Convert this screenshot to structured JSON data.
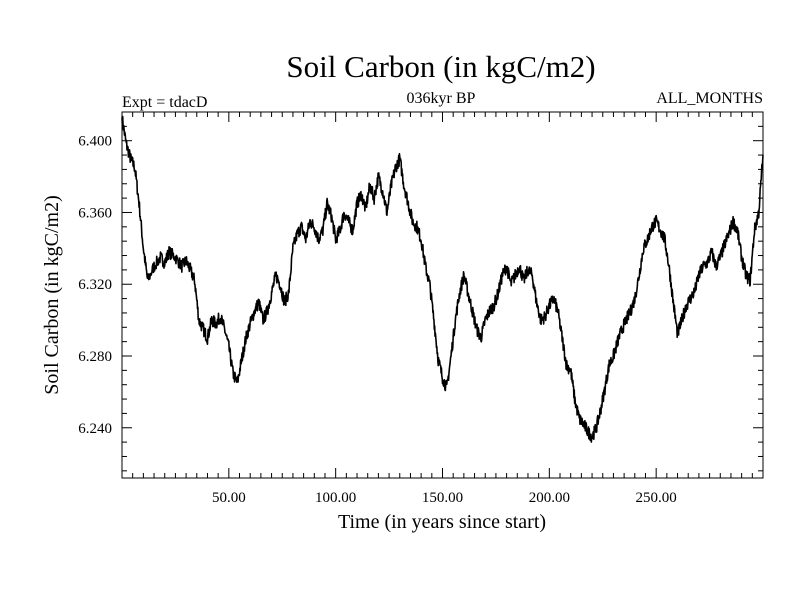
{
  "chart_data": {
    "type": "line",
    "title": "Soil Carbon (in kgC/m2)",
    "subtitle": "036kyr BP",
    "left_label": "Expt = tdacD",
    "right_label": "ALL_MONTHS",
    "xlabel": "Time (in years since start)",
    "ylabel": "Soil Carbon (in kgC/m2)",
    "xlim": [
      0,
      300
    ],
    "ylim": [
      6.212,
      6.416
    ],
    "x_ticks": [
      50,
      100,
      150,
      200,
      250
    ],
    "x_tick_labels": [
      "50.00",
      "100.00",
      "150.00",
      "200.00",
      "250.00"
    ],
    "y_ticks": [
      6.24,
      6.28,
      6.32,
      6.36,
      6.4
    ],
    "y_tick_labels": [
      "6.240",
      "6.280",
      "6.320",
      "6.360",
      "6.400"
    ],
    "grid": false,
    "series": [
      {
        "name": "Soil Carbon",
        "color": "#000000",
        "x": [
          0,
          2,
          4,
          6,
          8,
          10,
          12,
          15,
          18,
          20,
          22,
          25,
          28,
          30,
          32,
          34,
          36,
          38,
          40,
          42,
          44,
          46,
          48,
          50,
          52,
          54,
          56,
          58,
          60,
          62,
          64,
          66,
          68,
          70,
          72,
          74,
          76,
          78,
          80,
          82,
          84,
          86,
          88,
          90,
          92,
          94,
          96,
          98,
          100,
          102,
          104,
          106,
          108,
          110,
          112,
          114,
          116,
          118,
          120,
          122,
          124,
          126,
          128,
          130,
          132,
          134,
          136,
          138,
          140,
          142,
          144,
          146,
          148,
          150,
          152,
          154,
          156,
          158,
          160,
          162,
          164,
          166,
          168,
          170,
          172,
          174,
          176,
          178,
          180,
          182,
          184,
          186,
          188,
          190,
          192,
          194,
          196,
          198,
          200,
          202,
          204,
          206,
          208,
          210,
          212,
          214,
          216,
          218,
          220,
          222,
          224,
          226,
          228,
          230,
          232,
          234,
          236,
          238,
          240,
          242,
          244,
          246,
          248,
          250,
          252,
          254,
          256,
          258,
          260,
          262,
          264,
          266,
          268,
          270,
          272,
          274,
          276,
          278,
          280,
          282,
          284,
          286,
          288,
          290,
          292,
          294,
          296,
          298,
          300
        ],
        "values": [
          6.413,
          6.398,
          6.39,
          6.385,
          6.365,
          6.34,
          6.322,
          6.33,
          6.335,
          6.332,
          6.338,
          6.335,
          6.33,
          6.333,
          6.328,
          6.322,
          6.3,
          6.295,
          6.29,
          6.3,
          6.298,
          6.302,
          6.295,
          6.285,
          6.27,
          6.265,
          6.278,
          6.29,
          6.298,
          6.305,
          6.31,
          6.3,
          6.305,
          6.315,
          6.325,
          6.32,
          6.31,
          6.315,
          6.34,
          6.348,
          6.352,
          6.345,
          6.355,
          6.352,
          6.345,
          6.35,
          6.365,
          6.358,
          6.345,
          6.35,
          6.36,
          6.355,
          6.35,
          6.365,
          6.37,
          6.362,
          6.375,
          6.368,
          6.38,
          6.372,
          6.36,
          6.375,
          6.385,
          6.39,
          6.375,
          6.365,
          6.355,
          6.352,
          6.345,
          6.33,
          6.32,
          6.3,
          6.278,
          6.268,
          6.262,
          6.28,
          6.3,
          6.315,
          6.325,
          6.315,
          6.305,
          6.295,
          6.29,
          6.3,
          6.305,
          6.308,
          6.315,
          6.325,
          6.33,
          6.32,
          6.325,
          6.33,
          6.322,
          6.328,
          6.325,
          6.31,
          6.3,
          6.302,
          6.308,
          6.312,
          6.305,
          6.29,
          6.275,
          6.272,
          6.255,
          6.245,
          6.242,
          6.238,
          6.235,
          6.24,
          6.25,
          6.262,
          6.275,
          6.28,
          6.288,
          6.295,
          6.3,
          6.305,
          6.312,
          6.325,
          6.34,
          6.345,
          6.352,
          6.355,
          6.35,
          6.345,
          6.33,
          6.31,
          6.292,
          6.3,
          6.308,
          6.312,
          6.316,
          6.325,
          6.33,
          6.332,
          6.338,
          6.33,
          6.335,
          6.342,
          6.348,
          6.355,
          6.35,
          6.335,
          6.325,
          6.322,
          6.35,
          6.36,
          6.392
        ]
      }
    ]
  }
}
